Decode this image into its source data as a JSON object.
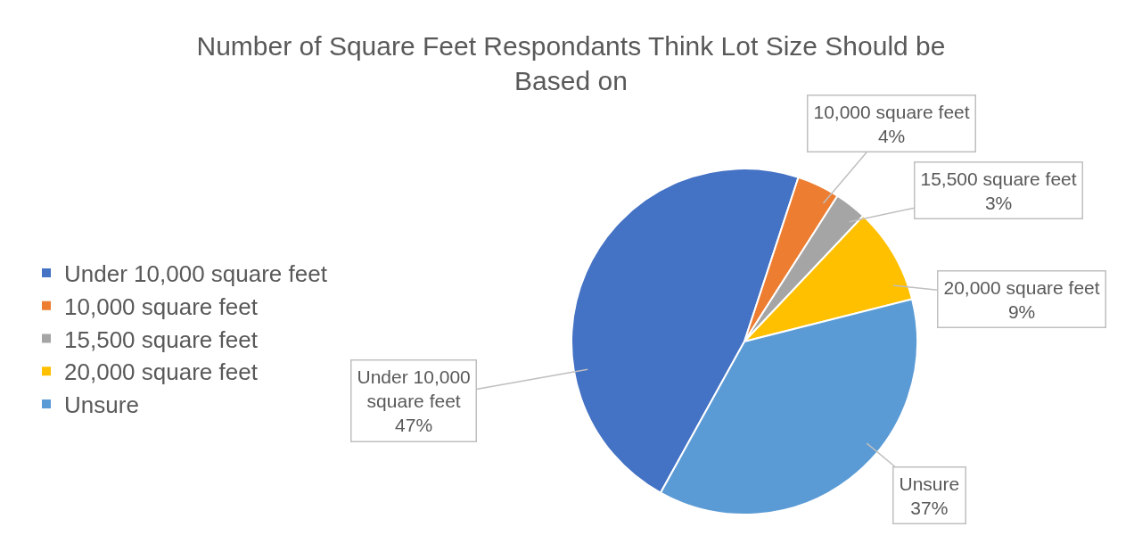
{
  "chart_data": {
    "type": "pie",
    "title": "Number of Square Feet Respondants Think Lot Size Should be Based on",
    "categories": [
      "Under 10,000 square feet",
      "10,000 square feet",
      "15,500 square feet",
      "20,000 square feet",
      "Unsure"
    ],
    "values": [
      47,
      4,
      3,
      9,
      37
    ],
    "colors": [
      "#4472c4",
      "#ed7d31",
      "#a5a5a5",
      "#ffc000",
      "#5b9bd5"
    ],
    "value_labels": [
      "47%",
      "4%",
      "3%",
      "9%",
      "37%"
    ],
    "legend": "left"
  }
}
